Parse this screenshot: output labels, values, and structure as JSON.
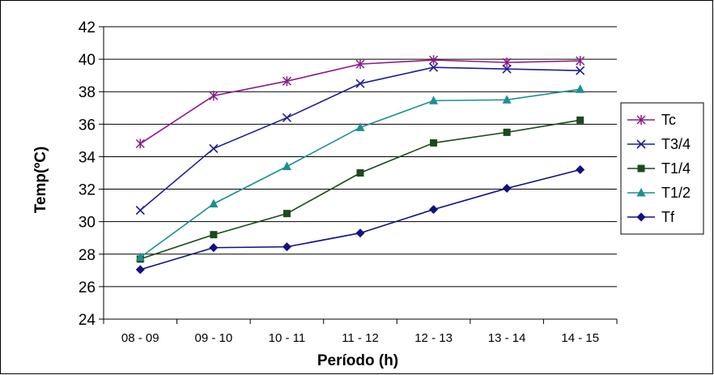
{
  "chart_data": {
    "type": "line",
    "title": "",
    "xlabel": "Período (h)",
    "ylabel": "Temp(ºC)",
    "categories": [
      "08 - 09",
      "09 - 10",
      "10 - 11",
      "11 - 12",
      "12 - 13",
      "13 - 14",
      "14 - 15"
    ],
    "ylim": [
      24,
      42
    ],
    "yticks": [
      "24",
      "26",
      "28",
      "30",
      "32",
      "34",
      "36",
      "38",
      "40",
      "42"
    ],
    "grid": true,
    "legend_position": "right",
    "series": [
      {
        "name": "Tc",
        "color": "#8B1A8B",
        "marker": "asterisk",
        "values": [
          34.8,
          37.75,
          38.65,
          39.7,
          39.95,
          39.8,
          39.9
        ]
      },
      {
        "name": "T3/4",
        "color": "#1E1E96",
        "marker": "x",
        "values": [
          30.7,
          34.5,
          36.4,
          38.5,
          39.5,
          39.4,
          39.3
        ]
      },
      {
        "name": "T1/4",
        "color": "#1B4A1B",
        "marker": "square",
        "values": [
          27.7,
          29.2,
          30.5,
          33.0,
          34.85,
          35.5,
          36.25
        ]
      },
      {
        "name": "T1/2",
        "color": "#1A9090",
        "marker": "triangle",
        "values": [
          27.8,
          31.1,
          33.4,
          35.8,
          37.45,
          37.5,
          38.15
        ]
      },
      {
        "name": "Tf",
        "color": "#101080",
        "marker": "diamond",
        "values": [
          27.05,
          28.4,
          28.45,
          29.3,
          30.75,
          32.05,
          33.2
        ]
      }
    ]
  }
}
